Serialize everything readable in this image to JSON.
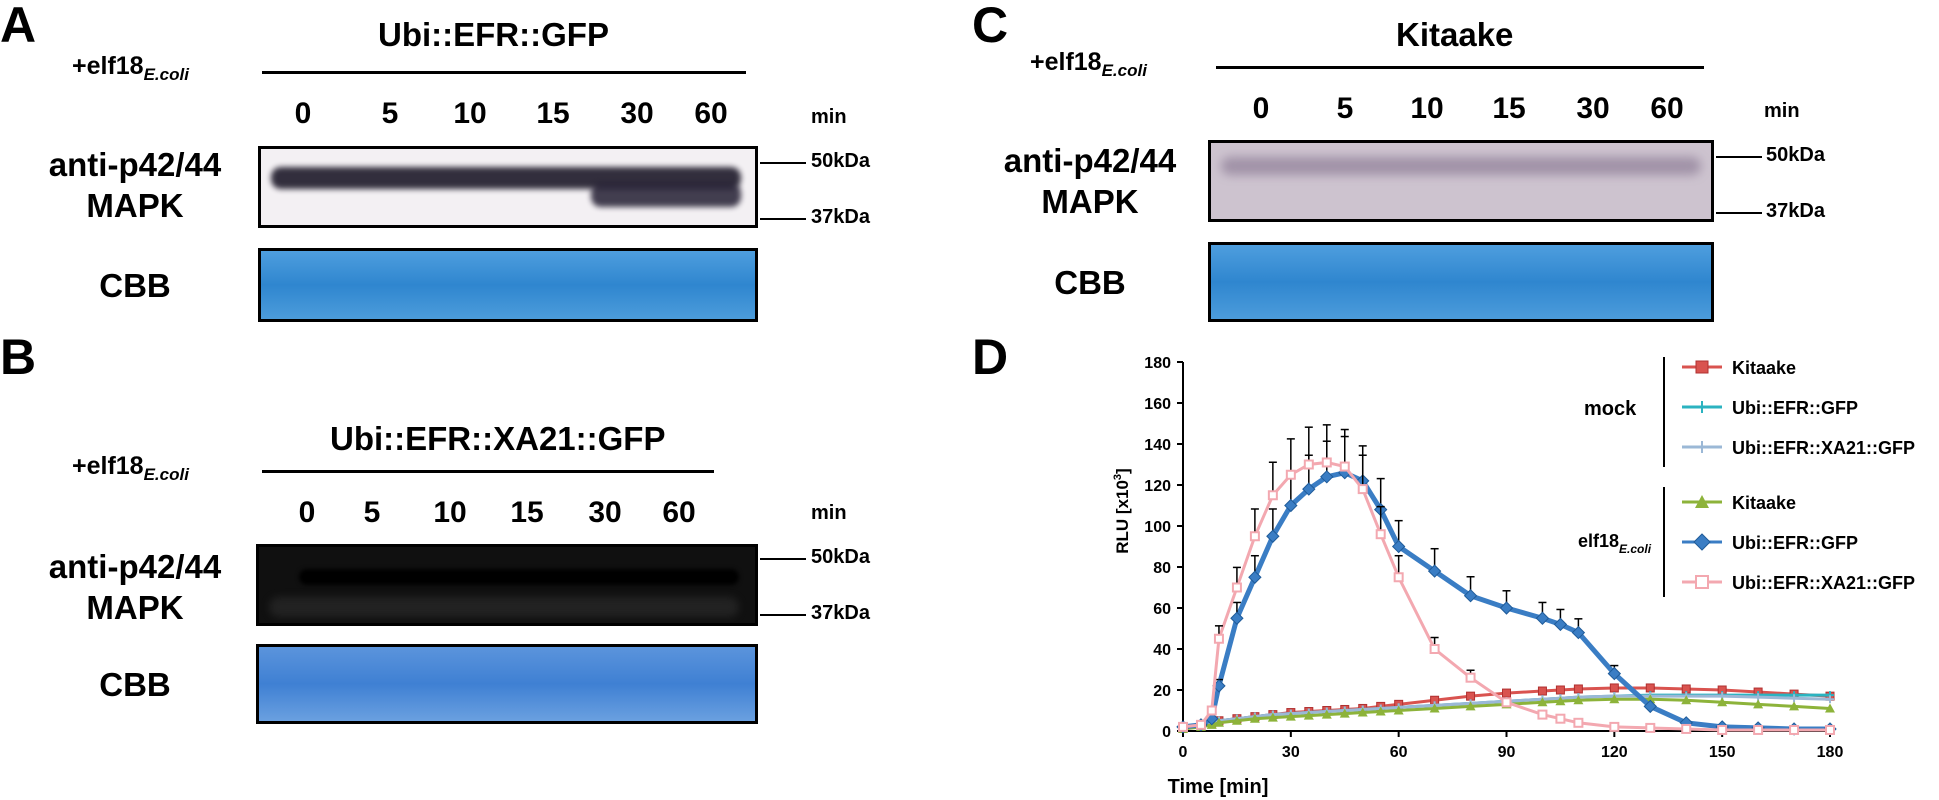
{
  "panelA": {
    "label": "A",
    "title": "Ubi::EFR::GFP",
    "treatment": {
      "main": "+elf18",
      "sub": "E.coli"
    },
    "timepoints": [
      "0",
      "5",
      "10",
      "15",
      "30",
      "60"
    ],
    "unit": "min",
    "row1_line1": "anti-p42/44",
    "row1_line2": "MAPK",
    "row2": "CBB",
    "mw_top": "50kDa",
    "mw_bottom": "37kDa"
  },
  "panelB": {
    "label": "B",
    "title": "Ubi::EFR::XA21::GFP",
    "treatment": {
      "main": "+elf18",
      "sub": "E.coli"
    },
    "timepoints": [
      "0",
      "5",
      "10",
      "15",
      "30",
      "60"
    ],
    "unit": "min",
    "row1_line1": "anti-p42/44",
    "row1_line2": "MAPK",
    "row2": "CBB",
    "mw_top": "50kDa",
    "mw_bottom": "37kDa"
  },
  "panelC": {
    "label": "C",
    "title": "Kitaake",
    "treatment": {
      "main": "+elf18",
      "sub": "E.coli"
    },
    "timepoints": [
      "0",
      "5",
      "10",
      "15",
      "30",
      "60"
    ],
    "unit": "min",
    "row1_line1": "anti-p42/44",
    "row1_line2": "MAPK",
    "row2": "CBB",
    "mw_top": "50kDa",
    "mw_bottom": "37kDa"
  },
  "panelD": {
    "label": "D",
    "group_mock": "mock",
    "group_elf": {
      "main": "elf18",
      "sub": "E.coli"
    }
  },
  "chart_data": {
    "type": "line",
    "xlabel": "Time [min]",
    "ylabel": "RLU [x10",
    "ylabel_sup": "3",
    "ylabel_end": "]",
    "xlim": [
      0,
      180
    ],
    "ylim": [
      0,
      180
    ],
    "xticks": [
      0,
      30,
      60,
      90,
      120,
      150,
      180
    ],
    "yticks": [
      0,
      20,
      40,
      60,
      80,
      100,
      120,
      140,
      160,
      180
    ],
    "grid": false,
    "legend_position": "top-right",
    "x": [
      0,
      5,
      8,
      10,
      15,
      20,
      25,
      30,
      35,
      40,
      45,
      50,
      55,
      60,
      70,
      80,
      90,
      100,
      105,
      110,
      120,
      130,
      140,
      150,
      160,
      170,
      180
    ],
    "series": [
      {
        "name": "Kitaake",
        "group": "mock",
        "color": "#d9534f",
        "marker": "square",
        "values": [
          2,
          3,
          4,
          5,
          6,
          7,
          8,
          9,
          9.5,
          10,
          10.5,
          11,
          12,
          13,
          15,
          17,
          18.5,
          19.5,
          20,
          20.5,
          21,
          21,
          20.5,
          20,
          19,
          18,
          17
        ]
      },
      {
        "name": "Ubi::EFR::GFP",
        "group": "mock",
        "color": "#2bb3c0",
        "marker": "cross",
        "values": [
          2,
          3,
          4,
          5,
          6,
          7,
          8,
          8.5,
          9,
          9.5,
          10,
          10.5,
          11,
          11.5,
          12.5,
          13.5,
          14.5,
          15.5,
          16,
          16.5,
          17,
          17.5,
          17.5,
          17.5,
          17.5,
          17.5,
          17.5
        ]
      },
      {
        "name": "Ubi::EFR::XA21::GFP",
        "group": "mock",
        "color": "#9bb8d6",
        "marker": "cross",
        "values": [
          2,
          3,
          4,
          5,
          6,
          7,
          8,
          8.5,
          9,
          9.5,
          10,
          10.5,
          11,
          11.5,
          12.5,
          13.5,
          14.5,
          15.5,
          16,
          16.5,
          17,
          17,
          17,
          17,
          16.5,
          16,
          15.5
        ]
      },
      {
        "name": "Kitaake",
        "group": "elf18",
        "color": "#8db33a",
        "marker": "triangle",
        "values": [
          1,
          2,
          3,
          4,
          5,
          6,
          6.5,
          7,
          7.5,
          8,
          8.5,
          9,
          9.5,
          10,
          11,
          12,
          13,
          14,
          14.5,
          15,
          15.5,
          15.5,
          15,
          14,
          13,
          12,
          11
        ]
      },
      {
        "name": "Ubi::EFR::GFP",
        "group": "elf18",
        "color": "#3a7dc4",
        "marker": "diamond",
        "values": [
          2,
          3,
          6,
          22,
          55,
          75,
          95,
          110,
          118,
          124,
          126,
          122,
          108,
          90,
          78,
          66,
          60,
          55,
          52,
          48,
          28,
          12,
          4,
          2,
          1.5,
          1,
          1
        ]
      },
      {
        "name": "Ubi::EFR::XA21::GFP",
        "group": "elf18",
        "color": "#f3a8b0",
        "marker": "square-open",
        "values": [
          2,
          3,
          10,
          45,
          70,
          95,
          115,
          125,
          130,
          131,
          129,
          118,
          96,
          75,
          40,
          26,
          14,
          8,
          6,
          4,
          2,
          1.5,
          1,
          0.5,
          0.5,
          0.5,
          0.5
        ]
      }
    ]
  }
}
